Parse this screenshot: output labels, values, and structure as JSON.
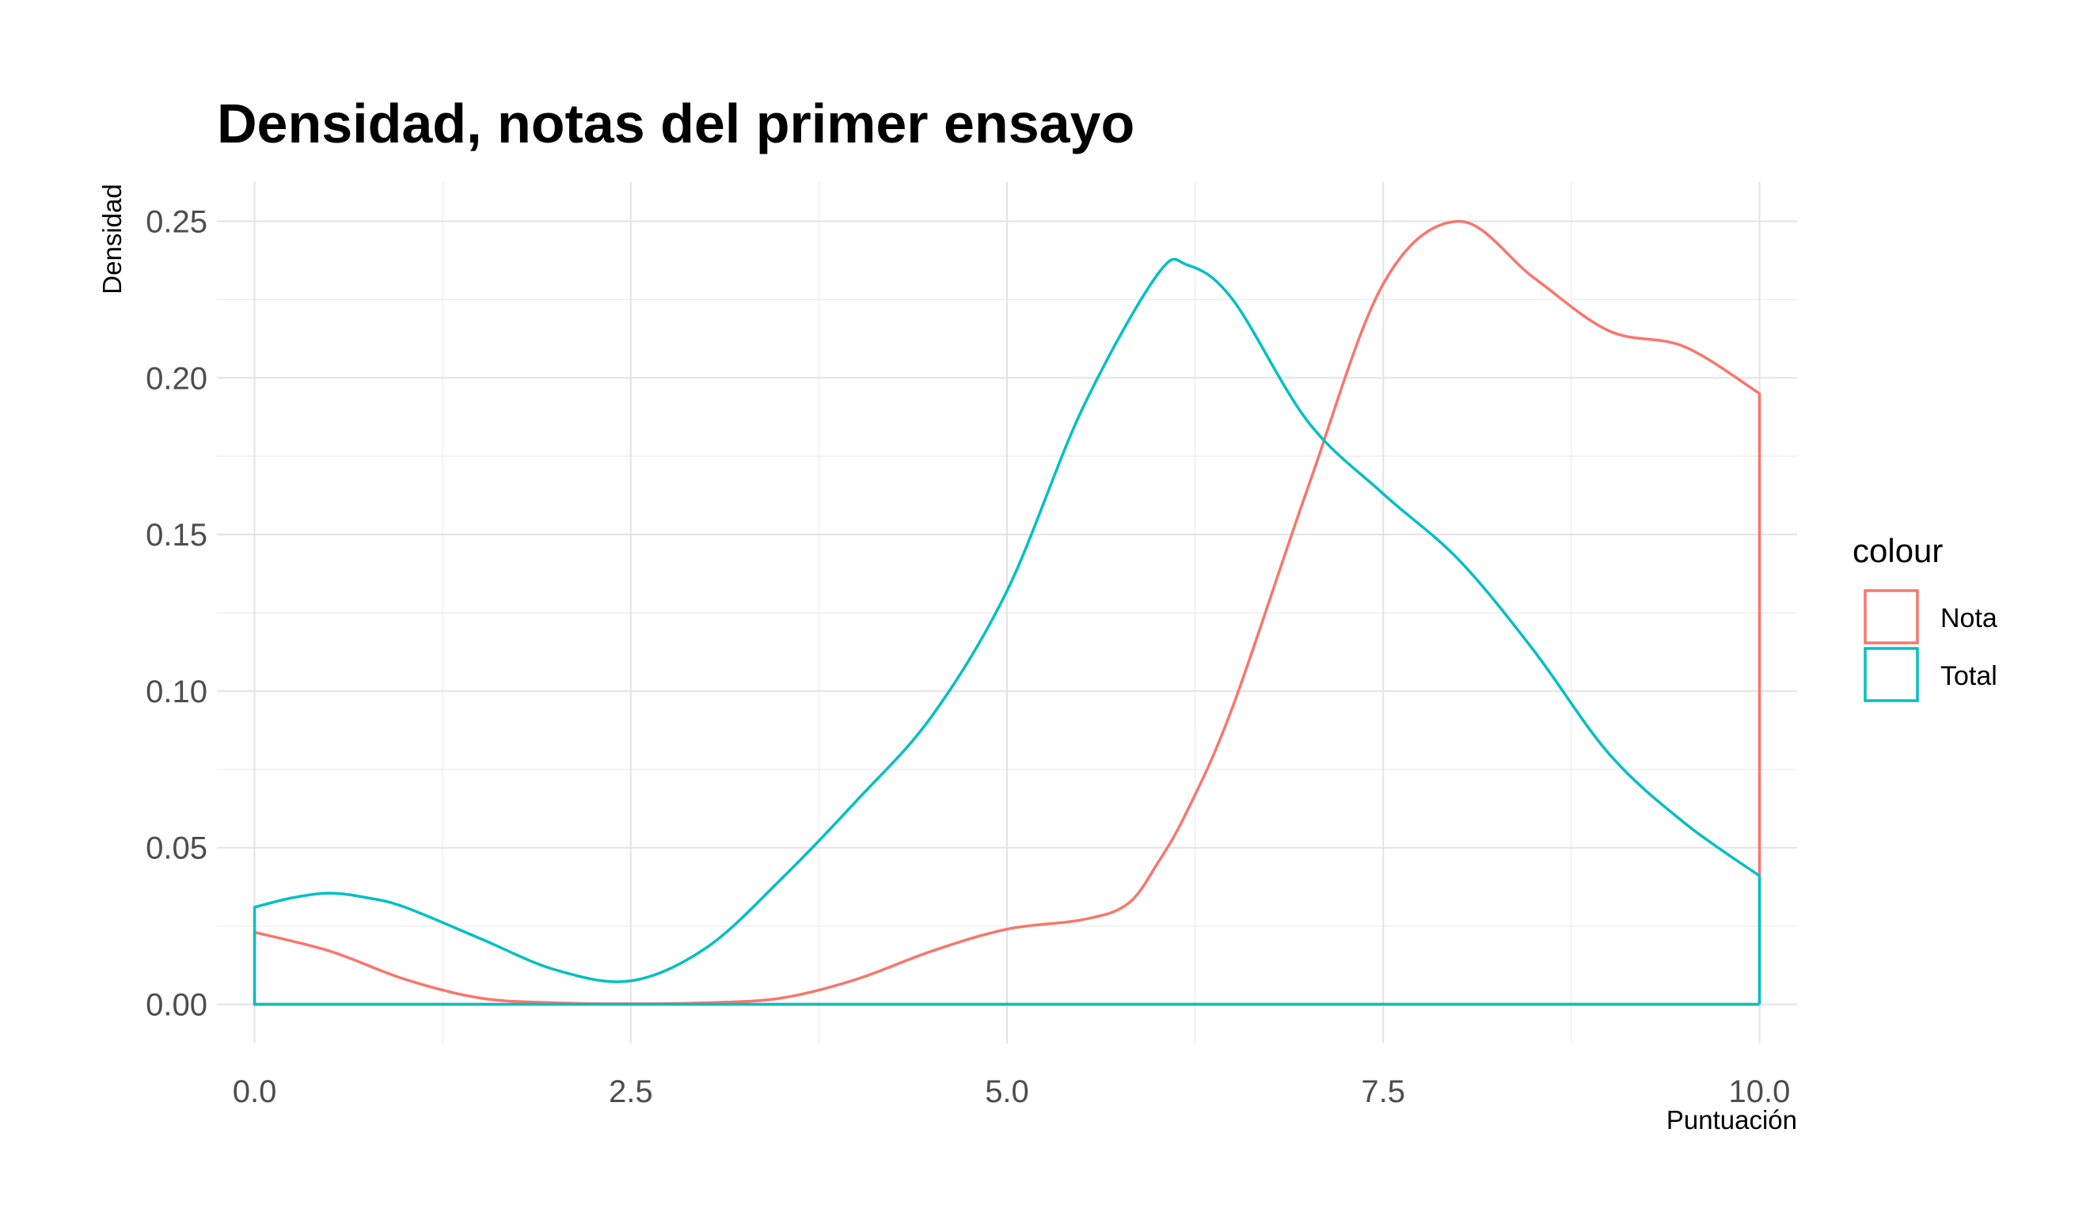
{
  "chart_data": {
    "type": "line",
    "subtype": "density",
    "title": "Densidad, notas del primer ensayo",
    "xlabel": "Puntuación",
    "ylabel": "Densidad",
    "xlim": [
      -0.25,
      10.25
    ],
    "ylim": [
      -0.0125,
      0.2625
    ],
    "x_ticks": [
      0,
      2.5,
      5,
      7.5,
      10
    ],
    "x_tick_labels": [
      "0.0",
      "2.5",
      "5.0",
      "7.5",
      "10.0"
    ],
    "y_ticks": [
      0,
      0.05,
      0.1,
      0.15,
      0.2,
      0.25
    ],
    "y_tick_labels": [
      "0.00",
      "0.05",
      "0.10",
      "0.15",
      "0.20",
      "0.25"
    ],
    "grid": true,
    "legend": {
      "title": "colour",
      "position": "right",
      "entries": [
        "Nota",
        "Total"
      ]
    },
    "series": [
      {
        "name": "Nota",
        "color": "#F8766D",
        "x": [
          0,
          0.5,
          1,
          1.5,
          2,
          2.5,
          3,
          3.5,
          4,
          4.5,
          5,
          5.5,
          5.8,
          6,
          6.2,
          6.5,
          7,
          7.5,
          8,
          8.5,
          9,
          9.5,
          10
        ],
        "y": [
          0.023,
          0.017,
          0.008,
          0.002,
          0.0005,
          0.0002,
          0.0005,
          0.002,
          0.008,
          0.017,
          0.024,
          0.027,
          0.032,
          0.045,
          0.062,
          0.095,
          0.165,
          0.23,
          0.25,
          0.232,
          0.215,
          0.21,
          0.195
        ]
      },
      {
        "name": "Total",
        "color": "#00BFC4",
        "x": [
          0,
          0.25,
          0.5,
          0.75,
          1,
          1.5,
          2,
          2.5,
          3,
          3.5,
          4,
          4.5,
          5,
          5.5,
          6,
          6.2,
          6.5,
          7,
          7.5,
          8,
          8.5,
          9,
          9.5,
          10
        ],
        "y": [
          0.031,
          0.034,
          0.0355,
          0.034,
          0.031,
          0.021,
          0.011,
          0.0075,
          0.018,
          0.04,
          0.065,
          0.092,
          0.132,
          0.19,
          0.233,
          0.236,
          0.225,
          0.186,
          0.163,
          0.142,
          0.113,
          0.08,
          0.058,
          0.041
        ]
      }
    ]
  }
}
